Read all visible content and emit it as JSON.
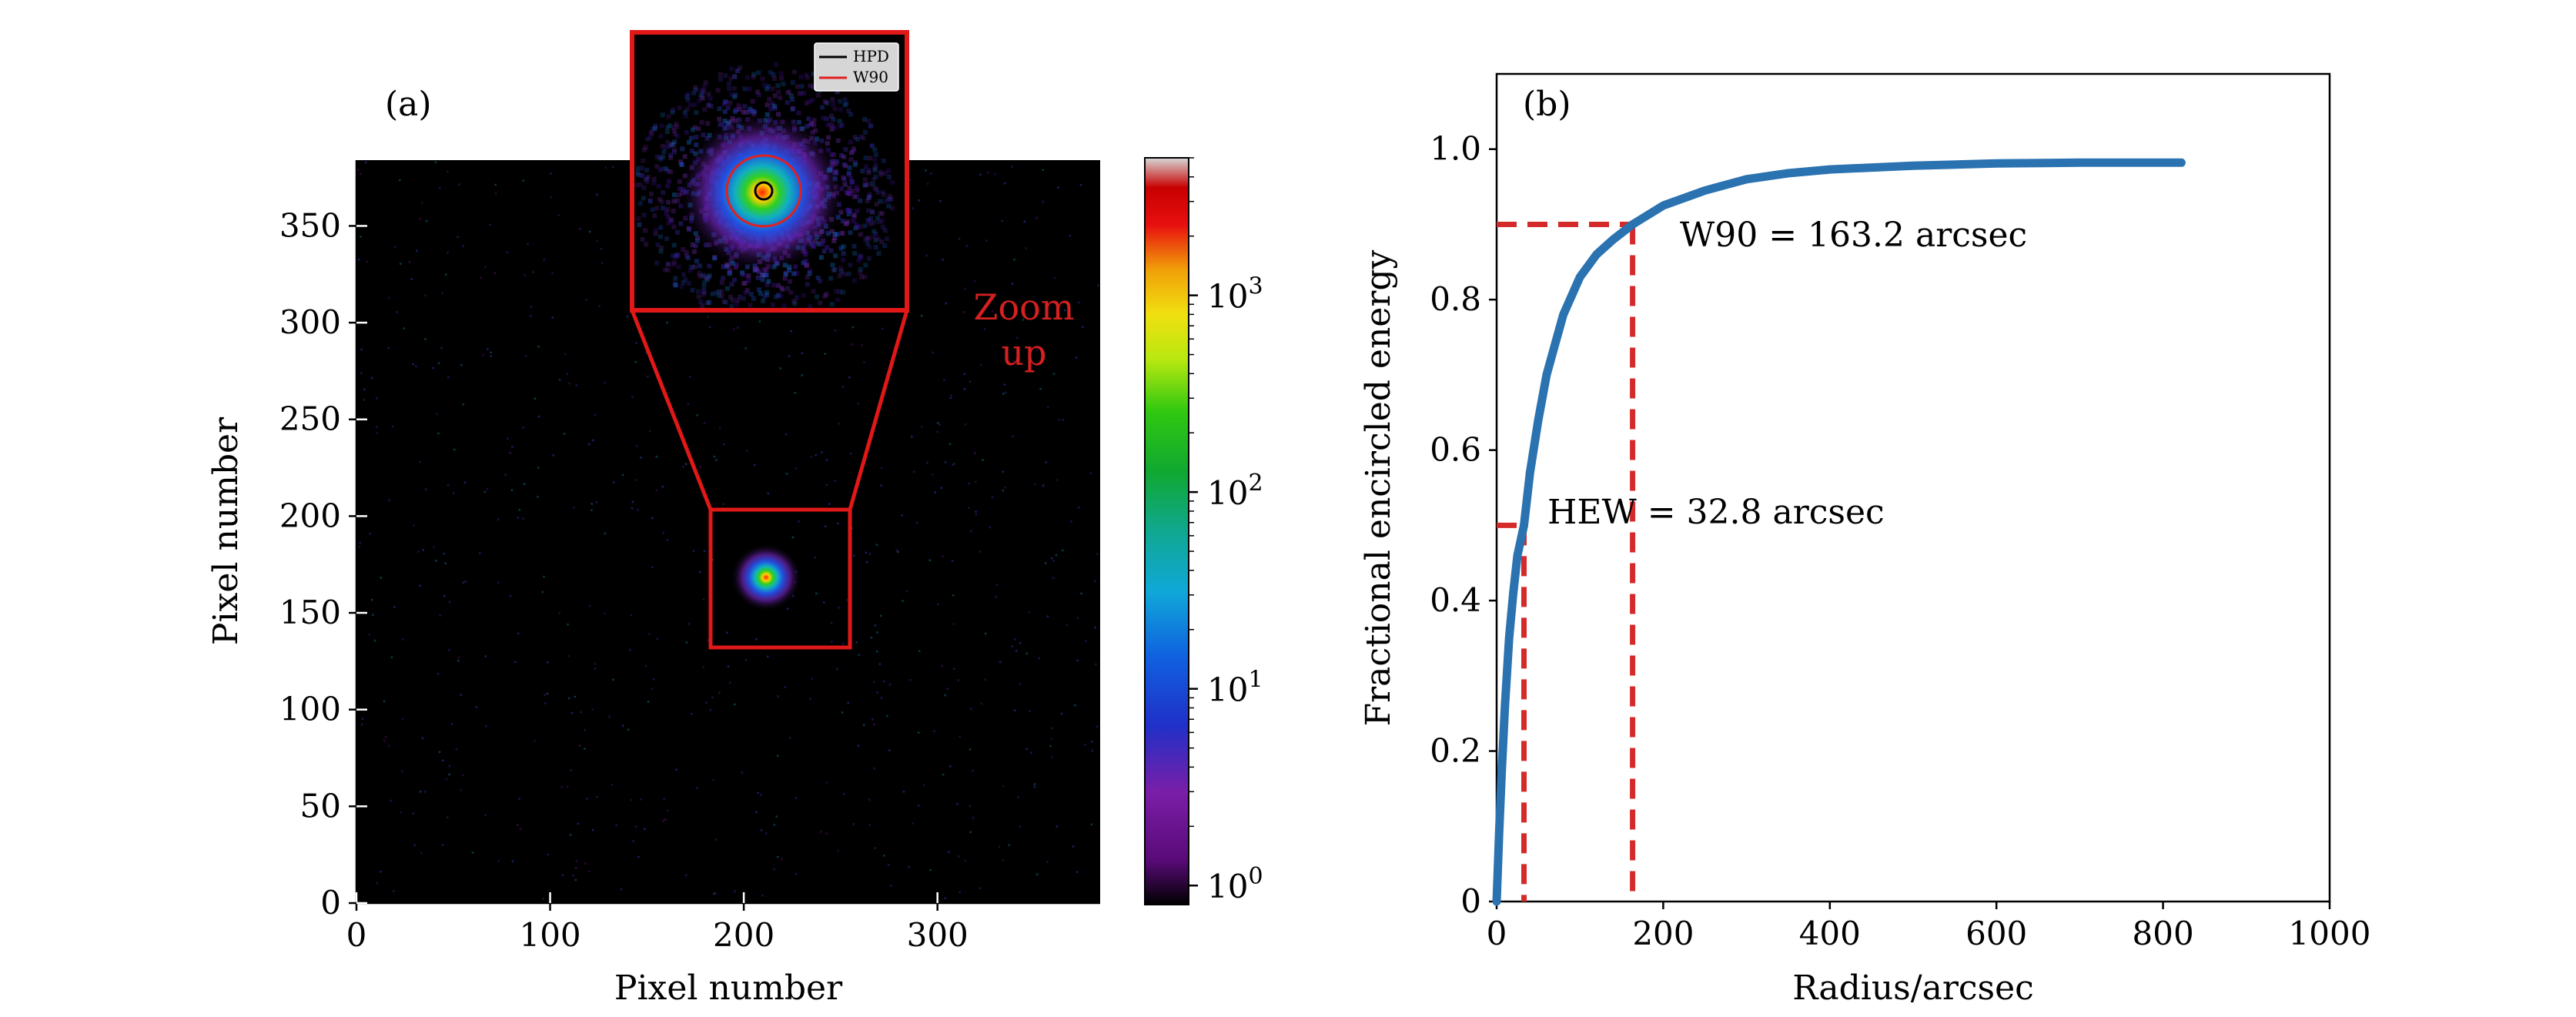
{
  "chart_data": [
    {
      "type": "heatmap",
      "panel_label": "(a)",
      "xlabel": "Pixel number",
      "ylabel": "Pixel number",
      "xlim": [
        0,
        384
      ],
      "ylim": [
        0,
        384
      ],
      "x_ticks": [
        "0",
        "100",
        "200",
        "300"
      ],
      "y_ticks": [
        "0",
        "50",
        "100",
        "150",
        "200",
        "250",
        "300",
        "350"
      ],
      "spot_center": [
        212,
        168
      ],
      "zoom_box": {
        "x": [
          182,
          254
        ],
        "y": [
          132,
          204
        ]
      },
      "zoom_label": [
        "Zoom",
        "up"
      ],
      "colorbar": {
        "scale": "log",
        "range": [
          0.8,
          5000
        ],
        "tick_base": "10",
        "tick_exponents": [
          "0",
          "1",
          "2",
          "3"
        ],
        "colormap": "nipy_spectral"
      },
      "inset_legend": [
        "HPD",
        "W90"
      ],
      "legend_colors": {
        "HPD": "#000000",
        "W90": "#e02020"
      }
    },
    {
      "type": "line",
      "panel_label": "(b)",
      "xlabel": "Radius/arcsec",
      "ylabel": "Fractional encircled energy",
      "xlim": [
        0,
        1000
      ],
      "ylim": [
        0,
        1.1
      ],
      "x_ticks": [
        "0",
        "200",
        "400",
        "600",
        "800",
        "1000"
      ],
      "y_ticks": [
        "0",
        "0.2",
        "0.4",
        "0.6",
        "0.8",
        "1.0"
      ],
      "series": [
        {
          "name": "Encircled energy",
          "color": "#2a72b0",
          "x": [
            0,
            3,
            6,
            10,
            15,
            20,
            25,
            32.8,
            40,
            50,
            60,
            70,
            80,
            100,
            120,
            140,
            163.2,
            200,
            250,
            300,
            350,
            400,
            500,
            600,
            700,
            822
          ],
          "y": [
            0,
            0.09,
            0.17,
            0.26,
            0.35,
            0.41,
            0.46,
            0.5,
            0.57,
            0.64,
            0.7,
            0.74,
            0.78,
            0.83,
            0.86,
            0.88,
            0.9,
            0.925,
            0.945,
            0.96,
            0.968,
            0.973,
            0.978,
            0.981,
            0.982,
            0.982
          ]
        }
      ],
      "markers": [
        {
          "label": "HEW = 32.8 arcsec",
          "x": 32.8,
          "y": 0.5,
          "color": "#d42a2a"
        },
        {
          "label": "W90 = 163.2 arcsec",
          "x": 163.2,
          "y": 0.9,
          "color": "#d42a2a"
        }
      ]
    }
  ]
}
